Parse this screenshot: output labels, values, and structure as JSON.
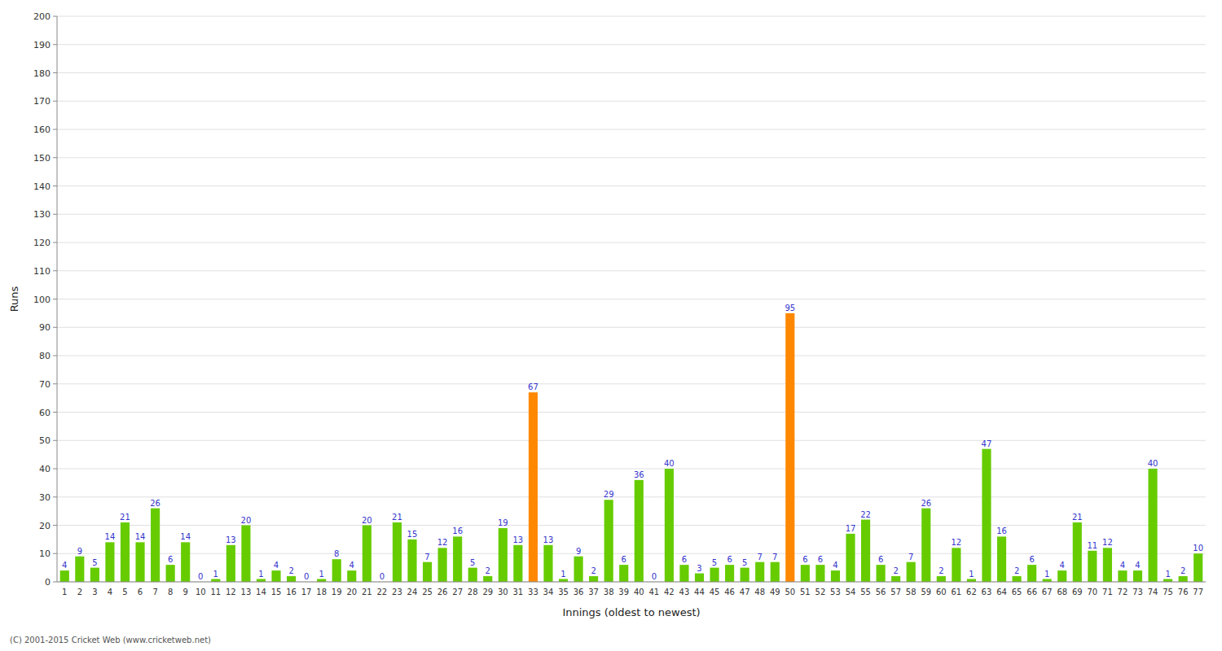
{
  "chart_data": {
    "type": "bar",
    "xlabel": "Innings (oldest to newest)",
    "ylabel": "Runs",
    "categories": [
      "1",
      "2",
      "3",
      "4",
      "5",
      "6",
      "7",
      "8",
      "9",
      "10",
      "11",
      "12",
      "13",
      "14",
      "15",
      "16",
      "17",
      "18",
      "19",
      "20",
      "21",
      "22",
      "23",
      "24",
      "25",
      "26",
      "27",
      "28",
      "29",
      "30",
      "31",
      "33",
      "34",
      "35",
      "36",
      "37",
      "38",
      "39",
      "40",
      "41",
      "42",
      "43",
      "44",
      "45",
      "46",
      "47",
      "48",
      "49",
      "50",
      "51",
      "52",
      "53",
      "54",
      "55",
      "56",
      "57",
      "58",
      "59",
      "60",
      "61",
      "62",
      "63",
      "64",
      "65",
      "66",
      "67",
      "68",
      "69",
      "70",
      "71",
      "72",
      "73",
      "74",
      "75",
      "76",
      "77"
    ],
    "values": [
      4,
      9,
      5,
      14,
      21,
      14,
      26,
      6,
      14,
      0,
      1,
      13,
      20,
      1,
      4,
      2,
      0,
      1,
      8,
      4,
      20,
      0,
      21,
      15,
      7,
      12,
      16,
      5,
      2,
      19,
      13,
      67,
      13,
      1,
      9,
      2,
      29,
      6,
      36,
      0,
      40,
      6,
      3,
      5,
      6,
      5,
      7,
      7,
      95,
      6,
      6,
      4,
      17,
      22,
      6,
      2,
      7,
      26,
      2,
      12,
      1,
      47,
      16,
      2,
      6,
      1,
      4,
      21,
      11,
      12,
      4,
      4,
      40,
      1,
      2,
      10
    ],
    "colors": [
      "#66cc00",
      "#66cc00",
      "#66cc00",
      "#66cc00",
      "#66cc00",
      "#66cc00",
      "#66cc00",
      "#66cc00",
      "#66cc00",
      "#66cc00",
      "#66cc00",
      "#66cc00",
      "#66cc00",
      "#66cc00",
      "#66cc00",
      "#66cc00",
      "#66cc00",
      "#66cc00",
      "#66cc00",
      "#66cc00",
      "#66cc00",
      "#66cc00",
      "#66cc00",
      "#66cc00",
      "#66cc00",
      "#66cc00",
      "#66cc00",
      "#66cc00",
      "#66cc00",
      "#66cc00",
      "#66cc00",
      "#ff8800",
      "#66cc00",
      "#66cc00",
      "#66cc00",
      "#66cc00",
      "#66cc00",
      "#66cc00",
      "#66cc00",
      "#66cc00",
      "#66cc00",
      "#66cc00",
      "#66cc00",
      "#66cc00",
      "#66cc00",
      "#66cc00",
      "#66cc00",
      "#66cc00",
      "#ff8800",
      "#66cc00",
      "#66cc00",
      "#66cc00",
      "#66cc00",
      "#66cc00",
      "#66cc00",
      "#66cc00",
      "#66cc00",
      "#66cc00",
      "#66cc00",
      "#66cc00",
      "#66cc00",
      "#66cc00",
      "#66cc00",
      "#66cc00",
      "#66cc00",
      "#66cc00",
      "#66cc00",
      "#66cc00",
      "#66cc00",
      "#66cc00",
      "#66cc00",
      "#66cc00",
      "#66cc00",
      "#66cc00",
      "#66cc00",
      "#66cc00"
    ],
    "data_labels": true,
    "label_color": "#3333cc",
    "ylim": [
      0,
      200
    ],
    "yticks": [
      0,
      10,
      20,
      30,
      40,
      50,
      60,
      70,
      80,
      90,
      100,
      110,
      120,
      130,
      140,
      150,
      160,
      170,
      180,
      190,
      200
    ],
    "grid": true,
    "annotations": [
      "(C) 2001-2015 Cricket Web (www.cricketweb.net)"
    ]
  }
}
